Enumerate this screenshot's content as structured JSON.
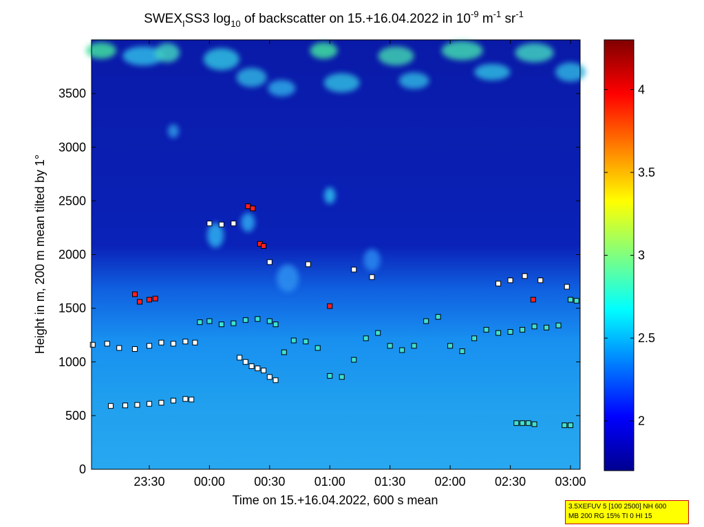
{
  "chart_data": {
    "type": "heatmap",
    "title": {
      "part1": "SWEX",
      "sub1": "I",
      "part2": "SS3 log",
      "sub2": "10",
      "part3": " of backscatter on 15.+16.04.2022 in 10",
      "sup1": "-9",
      "part4": " m",
      "sup2": "-1",
      "part5": " sr",
      "sup3": "-1"
    },
    "xlabel": "Time on 15.+16.04.2022, 600 s mean",
    "ylabel": "Height in m, 200 m mean tilted by 1°",
    "x_ticks": [
      "23:30",
      "00:00",
      "00:30",
      "01:00",
      "01:30",
      "02:00",
      "02:30",
      "03:00"
    ],
    "x_tick_hours": [
      -0.5,
      0,
      0.5,
      1.0,
      1.5,
      2.0,
      2.5,
      3.0
    ],
    "xlim_hours": [
      -0.98,
      3.08
    ],
    "y_ticks": [
      0,
      500,
      1000,
      1500,
      2000,
      2500,
      3000,
      3500
    ],
    "ylim": [
      0,
      4000
    ],
    "colorbar": {
      "range": [
        1.7,
        4.3
      ],
      "ticks": [
        2,
        2.5,
        3,
        3.5,
        4
      ],
      "tick_labels": [
        "2",
        "2.5",
        "3",
        "3.5",
        "4"
      ]
    },
    "series": [
      {
        "marker": "cloud-base-layer-upper",
        "x": [
          -0.97,
          -0.85,
          -0.75,
          -0.62,
          -0.5,
          -0.4,
          -0.3,
          -0.2,
          -0.12
        ],
        "y": [
          1160,
          1170,
          1130,
          1120,
          1150,
          1180,
          1170,
          1190,
          1180
        ]
      },
      {
        "marker": "cloud-base-layer-lower",
        "x": [
          -0.82,
          -0.7,
          -0.6,
          -0.5,
          -0.4,
          -0.3,
          -0.2,
          -0.15
        ],
        "y": [
          590,
          595,
          600,
          610,
          620,
          640,
          655,
          650
        ]
      },
      {
        "marker": "mid-layer",
        "x": [
          -0.08,
          0.0,
          0.1,
          0.2,
          0.3,
          0.4,
          0.5,
          0.55,
          0.62,
          0.7,
          0.8,
          0.9,
          1.0,
          1.1,
          1.2,
          1.3,
          1.4,
          1.5,
          1.6,
          1.7,
          1.8,
          1.9,
          2.0,
          2.1,
          2.2,
          2.3,
          2.4,
          2.5,
          2.6,
          2.7,
          2.8,
          2.9,
          3.0,
          3.05
        ],
        "y": [
          1370,
          1380,
          1350,
          1360,
          1390,
          1400,
          1380,
          1350,
          1090,
          1200,
          1190,
          1130,
          870,
          860,
          1020,
          1220,
          1270,
          1150,
          1110,
          1150,
          1380,
          1420,
          1150,
          1100,
          1220,
          1300,
          1270,
          1280,
          1300,
          1330,
          1320,
          1340,
          1580,
          1570
        ]
      },
      {
        "marker": "descending-layer",
        "x": [
          0.25,
          0.3,
          0.35,
          0.4,
          0.45,
          0.5,
          0.55
        ],
        "y": [
          1040,
          1000,
          960,
          940,
          920,
          860,
          830
        ]
      },
      {
        "marker": "red-points",
        "x": [
          -0.62,
          -0.58,
          -0.5,
          -0.45,
          0.32,
          0.36,
          0.42,
          0.45,
          1.0,
          2.69
        ],
        "y": [
          1630,
          1560,
          1580,
          1590,
          2450,
          2430,
          2100,
          2080,
          1520,
          1580
        ]
      },
      {
        "marker": "upper-scattered",
        "x": [
          0.0,
          0.1,
          0.2,
          0.5,
          0.82,
          1.2,
          1.35,
          2.4,
          2.5,
          2.62,
          2.75,
          2.97
        ],
        "y": [
          2290,
          2280,
          2290,
          1930,
          1910,
          1860,
          1790,
          1730,
          1760,
          1800,
          1760,
          1700
        ]
      },
      {
        "marker": "low-layer",
        "x": [
          2.55,
          2.6,
          2.65,
          2.7,
          2.95,
          3.0
        ],
        "y": [
          430,
          430,
          430,
          420,
          410,
          410
        ]
      }
    ]
  },
  "info_box": {
    "line1": "3.5XEFUV 5 [100 2500] NH 600",
    "line2": "MB 200 RG 15% TI 0 HI 15"
  }
}
